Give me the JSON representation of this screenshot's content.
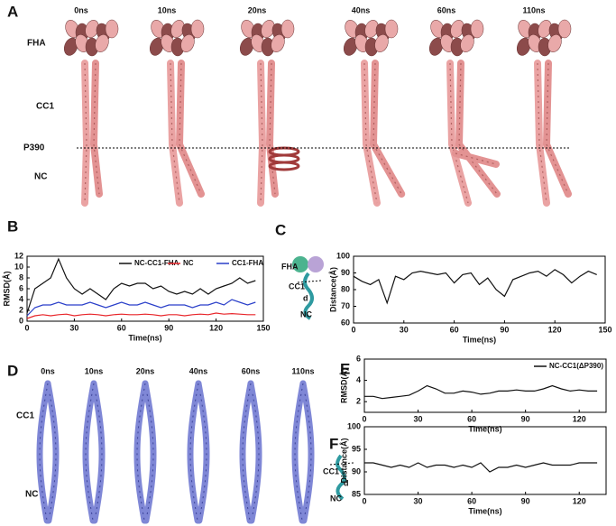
{
  "panel_labels": [
    "A",
    "B",
    "C",
    "D",
    "E",
    "F"
  ],
  "panel_a": {
    "times": [
      "0ns",
      "10ns",
      "20ns",
      "40ns",
      "60ns",
      "110ns"
    ],
    "labels": [
      "FHA",
      "CC1",
      "P390",
      "NC"
    ]
  },
  "panel_c_inset": {
    "labels": [
      "FHA",
      "CC1",
      "d",
      "NC"
    ]
  },
  "panel_d": {
    "times": [
      "0ns",
      "10ns",
      "20ns",
      "40ns",
      "60ns",
      "110ns"
    ],
    "labels": [
      "CC1",
      "NC"
    ]
  },
  "panel_f_inset": {
    "labels": [
      "CC1",
      "d",
      "NC"
    ]
  },
  "chart_data": [
    {
      "type": "line",
      "xlabel": "Time(ns)",
      "ylabel": "RMSD(Å)",
      "x": [
        0,
        5,
        10,
        15,
        20,
        25,
        30,
        35,
        40,
        45,
        50,
        55,
        60,
        65,
        70,
        75,
        80,
        85,
        90,
        95,
        100,
        105,
        110,
        115,
        120,
        125,
        130,
        135,
        140,
        145
      ],
      "series": [
        {
          "name": "NC-CC1-FHA",
          "color": "#111111",
          "values": [
            1.5,
            6,
            7,
            8,
            11.5,
            8,
            6,
            5,
            6,
            5,
            4,
            6,
            7,
            6.5,
            7,
            7,
            6,
            6.5,
            5.5,
            5,
            5.5,
            5,
            6,
            5,
            6,
            6.5,
            7,
            8,
            7,
            7.5
          ]
        },
        {
          "name": "NC",
          "color": "#e8262b",
          "values": [
            0.5,
            1,
            1.2,
            1,
            1.2,
            1.3,
            1,
            1.2,
            1.3,
            1.2,
            1,
            1.2,
            1.3,
            1.2,
            1.2,
            1.3,
            1.2,
            1,
            1.2,
            1.2,
            1,
            1.2,
            1.3,
            1.2,
            1.5,
            1.3,
            1.4,
            1.3,
            1.2,
            1.2
          ]
        },
        {
          "name": "CC1-FHA",
          "color": "#2a3fc9",
          "values": [
            1,
            2.5,
            3,
            3,
            3.5,
            3,
            3,
            3,
            3.5,
            3,
            2.5,
            3,
            3.5,
            3,
            3,
            3.5,
            3,
            2.5,
            3,
            3,
            3,
            2.5,
            3,
            3,
            3.5,
            3,
            4,
            3.5,
            3,
            3.5
          ]
        }
      ],
      "xlim": [
        0,
        150
      ],
      "xticks": [
        0,
        30,
        60,
        90,
        120,
        150
      ],
      "ylim": [
        0,
        12
      ],
      "yticks": [
        0,
        2,
        4,
        6,
        8,
        10,
        12
      ]
    },
    {
      "type": "line",
      "xlabel": "Time(ns)",
      "ylabel": "Distance(Å)",
      "x": [
        0,
        5,
        10,
        15,
        20,
        25,
        30,
        35,
        40,
        45,
        50,
        55,
        60,
        65,
        70,
        75,
        80,
        85,
        90,
        95,
        100,
        105,
        110,
        115,
        120,
        125,
        130,
        135,
        140,
        145
      ],
      "series": [
        {
          "color": "#111111",
          "values": [
            88,
            85,
            83,
            86,
            72,
            88,
            86,
            90,
            91,
            90,
            89,
            90,
            84,
            89,
            90,
            83,
            87,
            80,
            76,
            86,
            88,
            90,
            91,
            88,
            92,
            89,
            84,
            88,
            91,
            89
          ]
        }
      ],
      "xlim": [
        0,
        150
      ],
      "xticks": [
        0,
        30,
        60,
        90,
        120,
        150
      ],
      "ylim": [
        60,
        100
      ],
      "yticks": [
        60,
        70,
        80,
        90,
        100
      ]
    },
    {
      "type": "line",
      "xlabel": "Time(ns)",
      "ylabel": "RMSD(Å)",
      "x": [
        0,
        5,
        10,
        15,
        20,
        25,
        30,
        35,
        40,
        45,
        50,
        55,
        60,
        65,
        70,
        75,
        80,
        85,
        90,
        95,
        100,
        105,
        110,
        115,
        120,
        125,
        130
      ],
      "series": [
        {
          "name": "NC-CC1(ΔP390)",
          "color": "#111111",
          "values": [
            2.5,
            2.5,
            2.3,
            2.4,
            2.5,
            2.6,
            3,
            3.5,
            3.2,
            2.8,
            2.8,
            3,
            2.9,
            2.7,
            2.8,
            3,
            3,
            3.1,
            3,
            3,
            3.2,
            3.5,
            3.2,
            3,
            3.1,
            3,
            3
          ]
        }
      ],
      "xlim": [
        0,
        135
      ],
      "xticks": [
        0,
        30,
        60,
        90,
        120
      ],
      "ylim": [
        1,
        6
      ],
      "yticks": [
        2,
        4,
        6
      ]
    },
    {
      "type": "line",
      "xlabel": "Time(ns)",
      "ylabel": "Distance(Å)",
      "x": [
        0,
        5,
        10,
        15,
        20,
        25,
        30,
        35,
        40,
        45,
        50,
        55,
        60,
        65,
        70,
        75,
        80,
        85,
        90,
        95,
        100,
        105,
        110,
        115,
        120,
        125,
        130
      ],
      "series": [
        {
          "color": "#111111",
          "values": [
            92,
            92,
            91.5,
            91,
            91.5,
            91,
            92,
            91,
            91.5,
            91.5,
            91,
            91.5,
            91,
            92,
            90,
            91,
            91,
            91.5,
            91,
            91.5,
            92,
            91.5,
            91.5,
            91.5,
            92,
            92,
            92
          ]
        }
      ],
      "xlim": [
        0,
        135
      ],
      "xticks": [
        0,
        30,
        60,
        90,
        120
      ],
      "ylim": [
        85,
        100
      ],
      "yticks": [
        85,
        90,
        95,
        100
      ]
    }
  ]
}
